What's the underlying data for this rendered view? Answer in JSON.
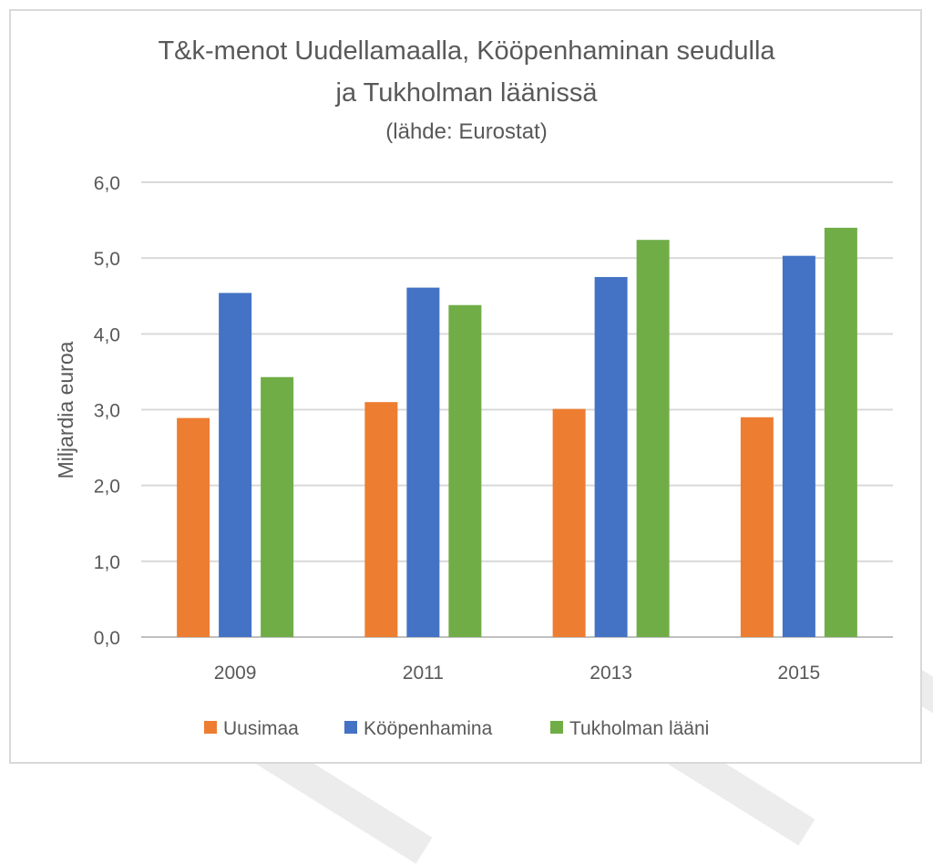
{
  "chart_data": {
    "type": "bar",
    "title_line1": "T&k-menot Uudellamaalla, Kööpenhaminan seudulla",
    "title_line2": "ja Tukholman läänissä",
    "subtitle": "(lähde: Eurostat)",
    "xlabel": "",
    "ylabel": "Miljardia euroa",
    "categories": [
      "2009",
      "2011",
      "2013",
      "2015"
    ],
    "ylim": [
      0,
      6
    ],
    "yticks": [
      "0,0",
      "1,0",
      "2,0",
      "3,0",
      "4,0",
      "5,0",
      "6,0"
    ],
    "grid": true,
    "legend_position": "bottom",
    "series": [
      {
        "name": "Uusimaa",
        "color": "#ed7d31",
        "values": [
          2.89,
          3.1,
          3.01,
          2.9
        ]
      },
      {
        "name": "Kööpenhamina",
        "color": "#4472c4",
        "values": [
          4.54,
          4.61,
          4.75,
          5.03
        ]
      },
      {
        "name": "Tukholman lääni",
        "color": "#70ad47",
        "values": [
          3.43,
          4.38,
          5.24,
          5.4
        ]
      }
    ]
  }
}
